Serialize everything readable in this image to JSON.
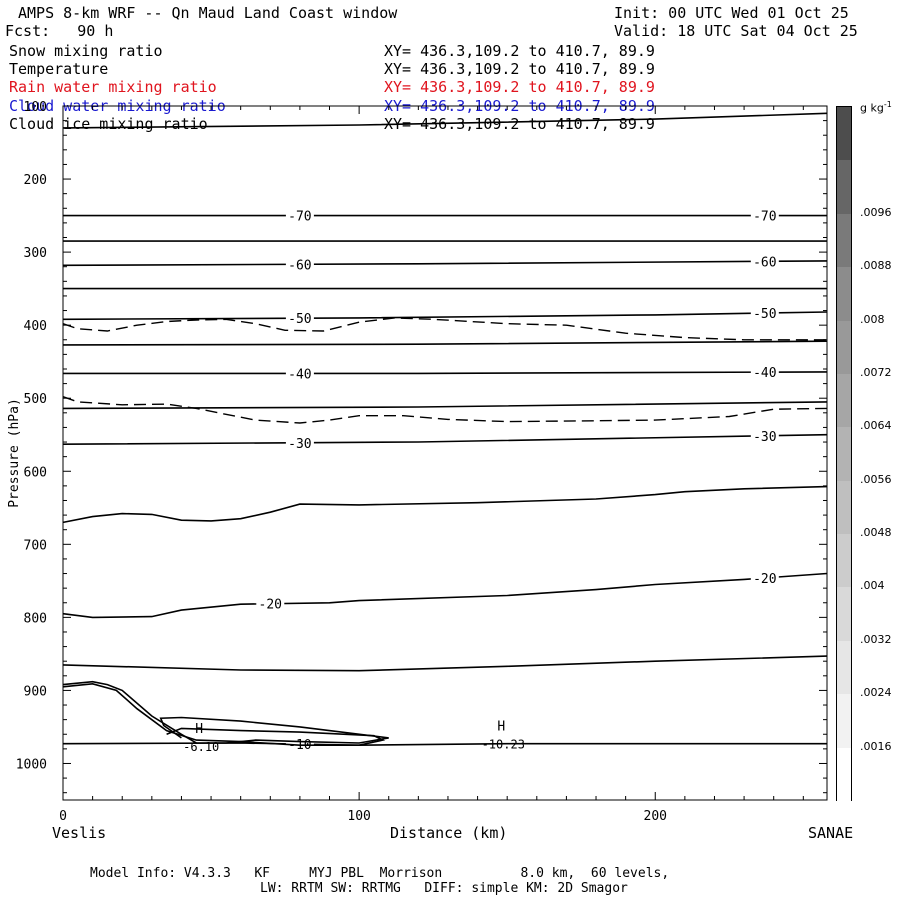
{
  "header": {
    "title": "AMPS 8-km WRF -- Qn Maud Land Coast window",
    "forecast": "Fcst:   90 h",
    "init": "Init: 00 UTC Wed 01 Oct 25",
    "valid": "Valid: 18 UTC Sat 04 Oct 25"
  },
  "fields": [
    {
      "name": "Snow mixing ratio",
      "xy": "XY= 436.3,109.2 to 410.7, 89.9",
      "color": "#000000"
    },
    {
      "name": "Temperature",
      "xy": "XY= 436.3,109.2 to 410.7, 89.9",
      "color": "#000000"
    },
    {
      "name": "Rain water mixing ratio",
      "xy": "XY= 436.3,109.2 to 410.7, 89.9",
      "color": "#e0141e"
    },
    {
      "name": "Cloud water mixing ratio",
      "xy": "XY= 436.3,109.2 to 410.7, 89.9",
      "color": "#1a1ad0"
    },
    {
      "name": "Cloud ice mixing ratio",
      "xy": "XY= 436.3,109.2 to 410.7, 89.9",
      "color": "#000000"
    }
  ],
  "footer": {
    "line1": "Model Info: V4.3.3   KF     MYJ PBL  Morrison          8.0 km,  60 levels,",
    "line2": "LW: RRTM SW: RRTMG   DIFF: simple KM: 2D Smagor"
  },
  "chart_data": {
    "type": "line",
    "xlabel": "Distance (km)",
    "ylabel": "Pressure (hPa)",
    "left_endpoint": "Veslis",
    "right_endpoint": "SANAE",
    "xlim": [
      0,
      258
    ],
    "ylim": [
      100,
      1050
    ],
    "y_reversed": true,
    "xticks": [
      0,
      100,
      200
    ],
    "yticks": [
      100,
      200,
      300,
      400,
      500,
      600,
      700,
      800,
      900,
      1000
    ],
    "colorbar": {
      "unit_label": "g kg",
      "unit_exponent": "-1",
      "ticks": [
        ".0016",
        ".0024",
        ".0032",
        ".004",
        ".0048",
        ".0056",
        ".0064",
        ".0072",
        ".008",
        ".0088",
        ".0096"
      ],
      "colors": [
        "#ffffff",
        "#f2f2f2",
        "#e6e6e6",
        "#d9d9d9",
        "#cccccc",
        "#bfbfbf",
        "#b3b3b3",
        "#a6a6a6",
        "#999999",
        "#8c8c8c",
        "#7a7a7a",
        "#666666",
        "#4d4d4d"
      ]
    },
    "isotherms": [
      {
        "label": "-70",
        "label_x": [
          80,
          237
        ],
        "points": [
          [
            0,
            250
          ],
          [
            258,
            250
          ]
        ]
      },
      {
        "label": "",
        "points": [
          [
            0,
            285
          ],
          [
            258,
            285
          ]
        ]
      },
      {
        "label": "-60",
        "label_x": [
          80,
          237
        ],
        "points": [
          [
            0,
            318
          ],
          [
            120,
            316
          ],
          [
            258,
            312
          ]
        ]
      },
      {
        "label": "",
        "points": [
          [
            0,
            350
          ],
          [
            258,
            350
          ]
        ]
      },
      {
        "label": "-50",
        "label_x": [
          80,
          237
        ],
        "points": [
          [
            0,
            392
          ],
          [
            100,
            390
          ],
          [
            200,
            386
          ],
          [
            258,
            382
          ]
        ]
      },
      {
        "label": "",
        "points": [
          [
            0,
            427
          ],
          [
            120,
            426
          ],
          [
            258,
            422
          ]
        ]
      },
      {
        "label": "-40",
        "label_x": [
          80,
          237
        ],
        "points": [
          [
            0,
            466
          ],
          [
            120,
            466
          ],
          [
            258,
            464
          ]
        ]
      },
      {
        "label": "",
        "points": [
          [
            0,
            514
          ],
          [
            120,
            512
          ],
          [
            258,
            505
          ]
        ]
      },
      {
        "label": "-30",
        "label_x": [
          80,
          237
        ],
        "points": [
          [
            0,
            563
          ],
          [
            120,
            560
          ],
          [
            258,
            550
          ]
        ]
      },
      {
        "label": "",
        "points": [
          [
            0,
            670
          ],
          [
            10,
            662
          ],
          [
            20,
            658
          ],
          [
            30,
            659
          ],
          [
            40,
            667
          ],
          [
            50,
            668
          ],
          [
            60,
            665
          ],
          [
            70,
            656
          ],
          [
            80,
            645
          ],
          [
            100,
            646
          ],
          [
            140,
            643
          ],
          [
            180,
            638
          ],
          [
            200,
            632
          ],
          [
            210,
            628
          ],
          [
            230,
            624
          ],
          [
            258,
            621
          ]
        ]
      },
      {
        "label": "-20",
        "label_x": [
          70,
          237
        ],
        "points": [
          [
            0,
            795
          ],
          [
            10,
            800
          ],
          [
            30,
            799
          ],
          [
            40,
            790
          ],
          [
            60,
            782
          ],
          [
            90,
            780
          ],
          [
            100,
            777
          ],
          [
            150,
            770
          ],
          [
            180,
            762
          ],
          [
            200,
            755
          ],
          [
            230,
            748
          ],
          [
            258,
            740
          ]
        ]
      },
      {
        "label": "",
        "points": [
          [
            0,
            865
          ],
          [
            60,
            872
          ],
          [
            100,
            873
          ],
          [
            150,
            867
          ],
          [
            200,
            860
          ],
          [
            258,
            853
          ]
        ]
      },
      {
        "label": "-10",
        "label_x": [
          80
        ],
        "points": [
          [
            0,
            973
          ],
          [
            60,
            972
          ],
          [
            100,
            975
          ],
          [
            150,
            973
          ],
          [
            258,
            973
          ]
        ]
      },
      {
        "label": "",
        "points": [
          [
            0,
            892
          ],
          [
            10,
            888
          ],
          [
            15,
            892
          ],
          [
            20,
            900
          ],
          [
            30,
            935
          ],
          [
            40,
            960
          ],
          [
            45,
            972
          ],
          [
            55,
            972
          ],
          [
            65,
            968
          ],
          [
            80,
            970
          ],
          [
            100,
            972
          ],
          [
            110,
            965
          ],
          [
            80,
            950
          ],
          [
            60,
            942
          ],
          [
            40,
            937
          ],
          [
            33,
            938
          ],
          [
            34,
            948
          ],
          [
            40,
            965
          ]
        ]
      },
      {
        "label": "",
        "points": [
          [
            0,
            895
          ],
          [
            10,
            891
          ],
          [
            18,
            900
          ],
          [
            25,
            925
          ],
          [
            35,
            955
          ],
          [
            45,
            968
          ],
          [
            60,
            970
          ],
          [
            80,
            975
          ],
          [
            100,
            975
          ],
          [
            108,
            968
          ],
          [
            105,
            962
          ],
          [
            80,
            957
          ],
          [
            60,
            955
          ],
          [
            40,
            952
          ],
          [
            35,
            960
          ]
        ]
      }
    ],
    "dashed_lines": [
      {
        "points": [
          [
            0,
            398
          ],
          [
            5,
            405
          ],
          [
            15,
            408
          ],
          [
            25,
            400
          ],
          [
            35,
            395
          ],
          [
            45,
            393
          ],
          [
            55,
            392
          ],
          [
            65,
            398
          ],
          [
            75,
            407
          ],
          [
            88,
            408
          ],
          [
            100,
            396
          ],
          [
            112,
            390
          ],
          [
            125,
            392
          ],
          [
            150,
            398
          ],
          [
            170,
            400
          ],
          [
            190,
            411
          ],
          [
            210,
            417
          ],
          [
            230,
            420
          ],
          [
            258,
            420
          ]
        ]
      },
      {
        "points": [
          [
            0,
            498
          ],
          [
            5,
            505
          ],
          [
            20,
            509
          ],
          [
            35,
            508
          ],
          [
            45,
            514
          ],
          [
            55,
            522
          ],
          [
            65,
            530
          ],
          [
            80,
            534
          ],
          [
            90,
            530
          ],
          [
            100,
            524
          ],
          [
            115,
            524
          ],
          [
            130,
            529
          ],
          [
            150,
            532
          ],
          [
            175,
            531
          ],
          [
            200,
            530
          ],
          [
            225,
            525
          ],
          [
            240,
            515
          ],
          [
            258,
            514
          ]
        ]
      }
    ],
    "highs": [
      {
        "x": 46,
        "p": 958,
        "label": "H",
        "value": "-6.10"
      },
      {
        "x": 148,
        "p": 955,
        "label": "H",
        "value": "-10.23"
      }
    ],
    "top_line": {
      "points": [
        [
          0,
          130
        ],
        [
          100,
          126
        ],
        [
          200,
          118
        ],
        [
          258,
          110
        ]
      ]
    }
  }
}
